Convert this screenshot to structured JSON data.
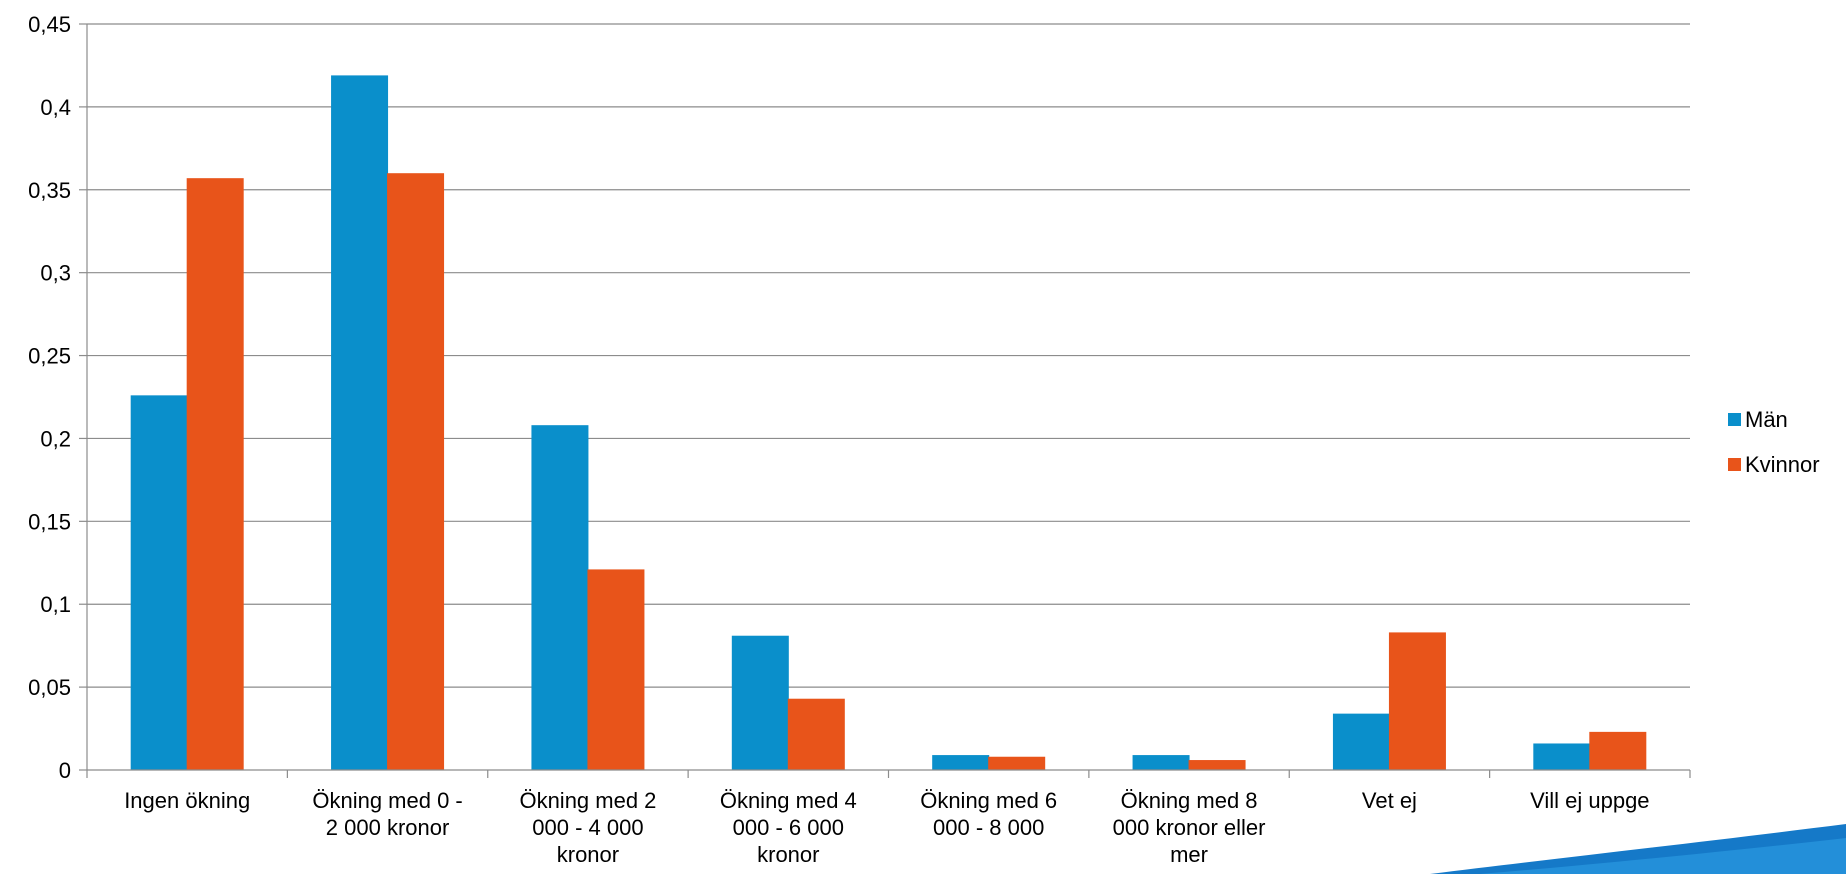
{
  "chart_data": {
    "type": "bar",
    "categories": [
      [
        "Ingen ökning"
      ],
      [
        "Ökning med 0 -",
        "2 000 kronor"
      ],
      [
        "Ökning med 2",
        "000 - 4 000",
        "kronor"
      ],
      [
        "Ökning med 4",
        "000 - 6 000",
        "kronor"
      ],
      [
        "Ökning med 6",
        "000 - 8 000"
      ],
      [
        "Ökning med  8",
        "000  kronor eller",
        "mer"
      ],
      [
        "Vet ej"
      ],
      [
        "Vill ej uppge"
      ]
    ],
    "series": [
      {
        "name": "Män",
        "color": "#0a8fcb",
        "values": [
          0.226,
          0.419,
          0.208,
          0.081,
          0.009,
          0.009,
          0.034,
          0.016
        ]
      },
      {
        "name": "Kvinnor",
        "color": "#e8541a",
        "values": [
          0.357,
          0.36,
          0.121,
          0.043,
          0.008,
          0.006,
          0.083,
          0.023
        ]
      }
    ],
    "yticks": [
      "0",
      "0,05",
      "0,1",
      "0,15",
      "0,2",
      "0,25",
      "0,3",
      "0,35",
      "0,4",
      "0,45"
    ],
    "ylim": [
      0,
      0.45
    ],
    "grid": true,
    "legend_position": "right"
  }
}
